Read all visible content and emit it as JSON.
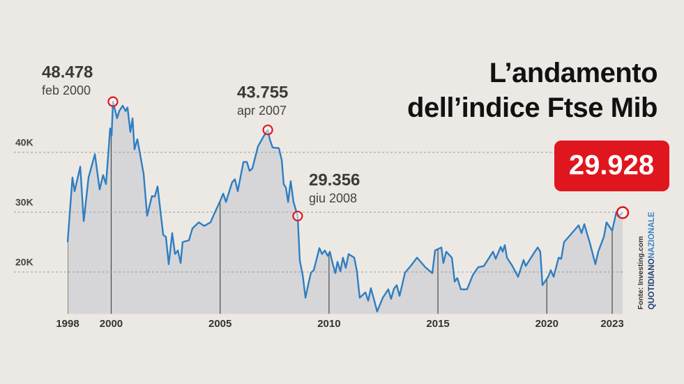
{
  "chart_data": {
    "type": "area-line",
    "title": "L’andamento dell’indice Ftse Mib",
    "source": "Fonte: Investing.com",
    "brand": [
      "QUOTIDIANO",
      "NAZIONALE"
    ],
    "color": "#2f7ec1",
    "fill_color": "#d6d6d9",
    "highlight_color": "#e0161e",
    "grid": true,
    "xlim": [
      1998,
      2023.48
    ],
    "xticks": [
      1998,
      2000,
      2005,
      2010,
      2015,
      2020,
      2023
    ],
    "ylim": [
      13000,
      58000
    ],
    "yticks": [
      {
        "value": 20000,
        "label": "20K"
      },
      {
        "value": 30000,
        "label": "30K"
      },
      {
        "value": 40000,
        "label": "40K"
      }
    ],
    "x": [
      1998.0,
      1998.22,
      1998.32,
      1998.58,
      1998.74,
      1998.96,
      1999.25,
      1999.47,
      1999.63,
      1999.76,
      1999.89,
      1999.95,
      2000.02,
      2000.08,
      2000.27,
      2000.37,
      2000.53,
      2000.66,
      2000.75,
      2000.88,
      2000.98,
      2001.07,
      2001.2,
      2001.49,
      2001.65,
      2001.87,
      2002.0,
      2002.13,
      2002.39,
      2002.51,
      2002.64,
      2002.8,
      2002.93,
      2003.06,
      2003.19,
      2003.28,
      2003.57,
      2003.73,
      2004.02,
      2004.27,
      2004.56,
      2004.69,
      2004.98,
      2005.14,
      2005.27,
      2005.55,
      2005.68,
      2005.81,
      2006.07,
      2006.23,
      2006.35,
      2006.48,
      2006.74,
      2007.0,
      2007.19,
      2007.28,
      2007.41,
      2007.7,
      2007.83,
      2007.92,
      2008.02,
      2008.12,
      2008.24,
      2008.37,
      2008.56,
      2008.66,
      2008.79,
      2008.92,
      2009.04,
      2009.17,
      2009.3,
      2009.56,
      2009.68,
      2009.81,
      2009.94,
      2010.04,
      2010.16,
      2010.29,
      2010.39,
      2010.52,
      2010.64,
      2010.77,
      2010.9,
      2011.16,
      2011.28,
      2011.41,
      2011.67,
      2011.8,
      2011.92,
      2012.08,
      2012.21,
      2012.47,
      2012.72,
      2012.85,
      2012.98,
      2013.11,
      2013.24,
      2013.49,
      2013.75,
      2014.04,
      2014.42,
      2014.74,
      2014.87,
      2015.16,
      2015.25,
      2015.38,
      2015.64,
      2015.77,
      2015.89,
      2016.05,
      2016.34,
      2016.6,
      2016.85,
      2017.11,
      2017.53,
      2017.65,
      2017.88,
      2017.97,
      2018.07,
      2018.17,
      2018.42,
      2018.68,
      2018.93,
      2019.03,
      2019.45,
      2019.58,
      2019.7,
      2019.8,
      2020.06,
      2020.18,
      2020.31,
      2020.54,
      2020.66,
      2020.79,
      2021.08,
      2021.46,
      2021.59,
      2021.72,
      2021.98,
      2022.23,
      2022.36,
      2022.62,
      2022.74,
      2023.0,
      2023.19,
      2023.32,
      2023.48
    ],
    "values": [
      25000,
      35800,
      33500,
      37600,
      28500,
      35800,
      39700,
      33800,
      36200,
      34700,
      40800,
      44000,
      42800,
      48478,
      45700,
      46900,
      47800,
      46900,
      47500,
      43400,
      45700,
      40500,
      42200,
      36400,
      29400,
      32700,
      32600,
      34300,
      26200,
      25900,
      21300,
      26500,
      23000,
      23600,
      21500,
      25000,
      25300,
      27300,
      28300,
      27700,
      28300,
      29400,
      31700,
      33100,
      31700,
      35000,
      35500,
      33500,
      38400,
      38400,
      36900,
      37300,
      41000,
      42700,
      43755,
      42200,
      40800,
      40700,
      38700,
      34700,
      34100,
      31700,
      35200,
      31700,
      29356,
      21900,
      19500,
      15700,
      17800,
      19900,
      20300,
      24000,
      23000,
      23600,
      22700,
      23400,
      21500,
      19800,
      21700,
      20100,
      22400,
      20700,
      23000,
      22400,
      20100,
      15700,
      16600,
      15200,
      17300,
      15200,
      13400,
      15700,
      17100,
      15500,
      17200,
      17800,
      16000,
      19900,
      21000,
      22400,
      20800,
      19800,
      23600,
      24100,
      21500,
      23400,
      22400,
      18400,
      19000,
      17100,
      17100,
      19500,
      20800,
      21000,
      23400,
      22200,
      24200,
      23400,
      24500,
      22400,
      21000,
      19200,
      22000,
      21000,
      23400,
      24100,
      23400,
      17800,
      19200,
      20300,
      19200,
      22400,
      22200,
      25000,
      26200,
      27800,
      26500,
      28000,
      24800,
      21300,
      23400,
      25900,
      28300,
      26900,
      30000,
      29400,
      29928
    ],
    "value_labels": [
      null,
      null,
      null,
      null,
      null,
      null,
      null,
      null,
      null,
      null,
      null,
      null,
      null,
      "48.478",
      null,
      null,
      null,
      null,
      null,
      null,
      null,
      null,
      null,
      null,
      null,
      null,
      null,
      null,
      null,
      null,
      null,
      null,
      null,
      null,
      null,
      null,
      null,
      null,
      null,
      null,
      null,
      null,
      null,
      null,
      null,
      null,
      null,
      null,
      null,
      null,
      null,
      null,
      null,
      null,
      "43.755",
      null,
      null,
      null,
      null,
      null,
      null,
      null,
      null,
      null,
      "29.356",
      null,
      null,
      null,
      null,
      null,
      null,
      null,
      null,
      null,
      null,
      null,
      null,
      null,
      null,
      null,
      null,
      null,
      null,
      null,
      null,
      null,
      null,
      null,
      null,
      null,
      null,
      null,
      null,
      null,
      null,
      null,
      null,
      null,
      null,
      null,
      null,
      null,
      null,
      null,
      null,
      null,
      null,
      null,
      null,
      null,
      null,
      null,
      null,
      null,
      null,
      null,
      null,
      null,
      null,
      null,
      null,
      null,
      null,
      null,
      null,
      null,
      null,
      null,
      null,
      null,
      null,
      null,
      null,
      null,
      null,
      null,
      null,
      null,
      null,
      null,
      null,
      null,
      null,
      null,
      null,
      null,
      "29.928"
    ],
    "point_dates": [
      null,
      null,
      null,
      null,
      null,
      null,
      null,
      null,
      null,
      null,
      null,
      null,
      null,
      "feb 2000",
      null,
      null,
      null,
      null,
      null,
      null,
      null,
      null,
      null,
      null,
      null,
      null,
      null,
      null,
      null,
      null,
      null,
      null,
      null,
      null,
      null,
      null,
      null,
      null,
      null,
      null,
      null,
      null,
      null,
      null,
      null,
      null,
      null,
      null,
      null,
      null,
      null,
      null,
      null,
      null,
      "apr 2007",
      null,
      null,
      null,
      null,
      null,
      null,
      null,
      null,
      null,
      "giu 2008",
      null,
      null,
      null,
      null,
      null,
      null,
      null,
      null,
      null,
      null,
      null,
      null,
      null,
      null,
      null,
      null,
      null,
      null,
      null,
      null,
      null,
      null,
      null,
      null,
      null,
      null,
      null,
      null,
      null,
      null,
      null,
      null,
      null,
      null,
      null,
      null,
      null,
      null,
      null,
      null,
      null,
      null,
      null,
      null,
      null,
      null,
      null,
      null,
      null,
      null,
      null,
      null,
      null,
      null,
      null,
      null,
      null,
      null,
      null,
      null,
      null,
      null,
      null,
      null,
      null,
      null,
      null,
      null,
      null,
      null,
      null,
      null,
      null,
      null,
      null,
      null,
      null,
      null,
      null,
      null,
      null,
      null
    ]
  }
}
